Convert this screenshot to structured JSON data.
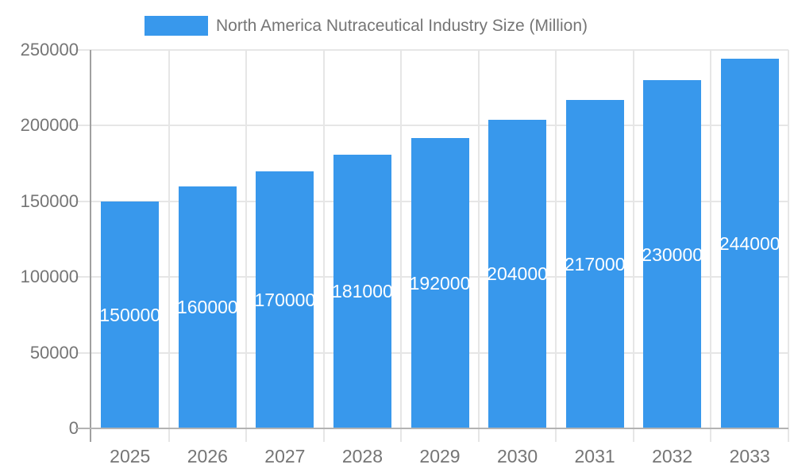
{
  "chart_data": {
    "type": "bar",
    "title": "North America Nutraceutical Industry Size (Million)",
    "categories": [
      "2025",
      "2026",
      "2027",
      "2028",
      "2029",
      "2030",
      "2031",
      "2032",
      "2033"
    ],
    "values": [
      150000,
      160000,
      170000,
      181000,
      192000,
      204000,
      217000,
      230000,
      244000
    ],
    "data_labels": [
      "150000",
      "160000",
      "170000",
      "181000",
      "192000",
      "204000",
      "217000",
      "230000",
      "244000"
    ],
    "xlabel": "",
    "ylabel": "",
    "ylim": [
      0,
      250000
    ],
    "yticks": [
      0,
      50000,
      100000,
      150000,
      200000,
      250000
    ],
    "ytick_labels": [
      "0",
      "50000",
      "100000",
      "150000",
      "200000",
      "250000"
    ],
    "grid": true,
    "legend_position": "top"
  },
  "colors": {
    "bar": "#3898ec",
    "bar_label": "#ffffff",
    "axis_text": "#757575",
    "legend_text": "#757575",
    "gridline": "#e6e6e6",
    "axis_line": "#a0a0a0",
    "baseline": "#b3b3b3",
    "background": "#ffffff"
  }
}
